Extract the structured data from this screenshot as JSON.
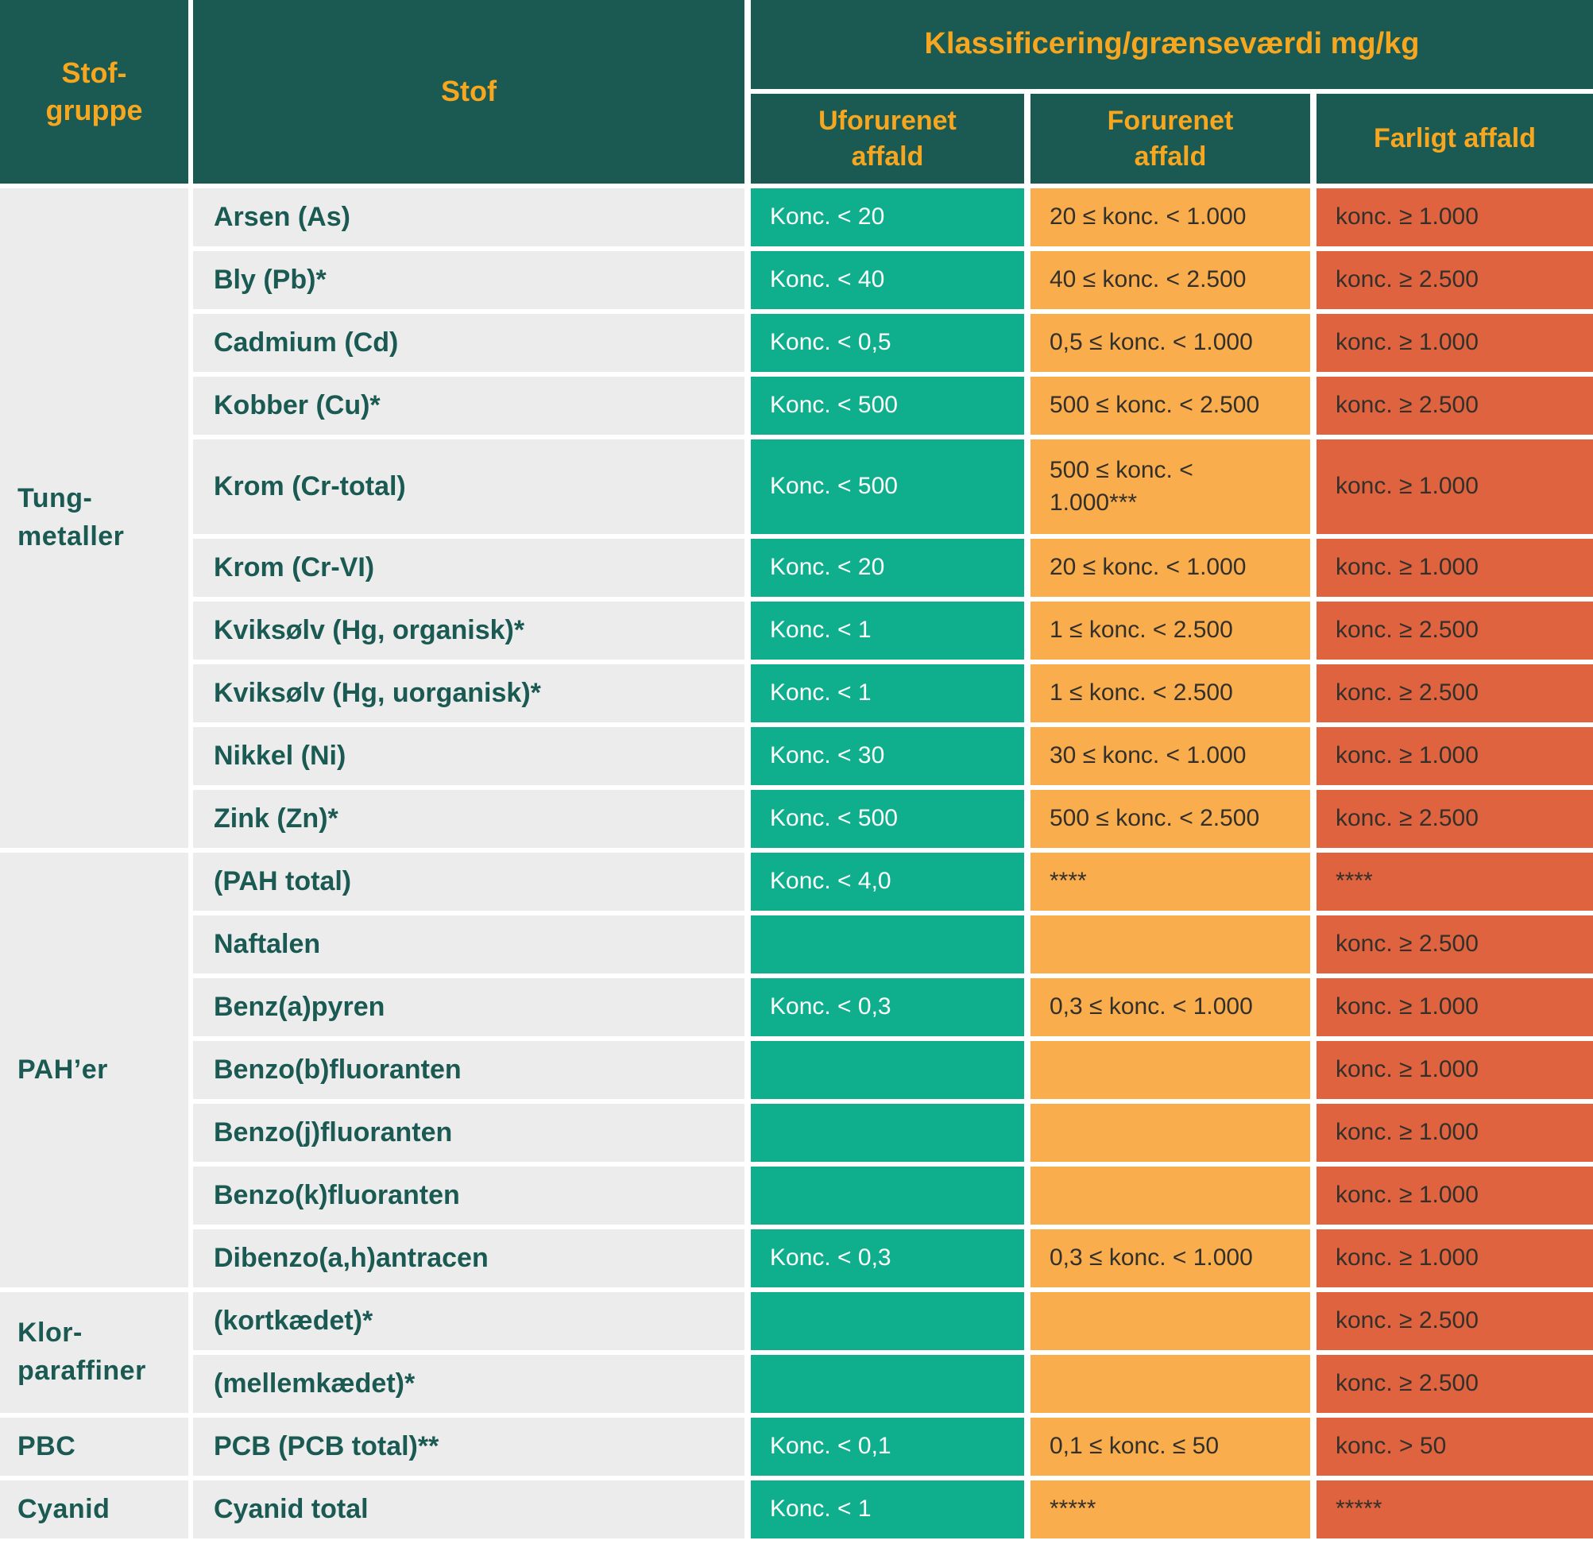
{
  "chart_data": {
    "type": "table",
    "title": "Klassificering/grænseværdi mg/kg",
    "col_headers": {
      "group": "Stof-gruppe",
      "substance": "Stof",
      "clean": "Uforurenet affald",
      "polluted": "Forurenet affald",
      "hazardous": "Farligt affald"
    },
    "groups": [
      {
        "label": "Tung-metaller",
        "rows": 10
      },
      {
        "label": "PAH’er",
        "rows": 7
      },
      {
        "label": "Klor-paraffiner",
        "rows": 2
      },
      {
        "label": "PBC",
        "rows": 1
      },
      {
        "label": "Cyanid",
        "rows": 1
      }
    ],
    "rows": [
      {
        "stof": "Arsen (As)",
        "clean": "Konc. < 20",
        "polluted": "20 ≤ konc. < 1.000",
        "hazardous": "konc. ≥ 1.000",
        "tall": false
      },
      {
        "stof": "Bly (Pb)*",
        "clean": "Konc. < 40",
        "polluted": "40 ≤ konc. < 2.500",
        "hazardous": "konc. ≥ 2.500",
        "tall": false
      },
      {
        "stof": "Cadmium (Cd)",
        "clean": "Konc. < 0,5",
        "polluted": "0,5 ≤ konc. < 1.000",
        "hazardous": "konc. ≥ 1.000",
        "tall": false
      },
      {
        "stof": "Kobber (Cu)*",
        "clean": "Konc. < 500",
        "polluted": "500 ≤ konc. < 2.500",
        "hazardous": "konc. ≥ 2.500",
        "tall": false
      },
      {
        "stof": "Krom (Cr-total)",
        "clean": "Konc. < 500",
        "polluted": "500 ≤ konc. < 1.000***",
        "hazardous": "konc. ≥ 1.000",
        "tall": true
      },
      {
        "stof": "Krom (Cr-VI)",
        "clean": "Konc. < 20",
        "polluted": "20 ≤ konc. < 1.000",
        "hazardous": "konc. ≥ 1.000",
        "tall": false
      },
      {
        "stof": "Kviksølv (Hg, organisk)*",
        "clean": "Konc. < 1",
        "polluted": "1 ≤ konc. < 2.500",
        "hazardous": "konc. ≥ 2.500",
        "tall": false
      },
      {
        "stof": "Kviksølv (Hg, uorganisk)*",
        "clean": "Konc. < 1",
        "polluted": "1 ≤ konc. < 2.500",
        "hazardous": "konc. ≥ 2.500",
        "tall": false
      },
      {
        "stof": "Nikkel (Ni)",
        "clean": "Konc. < 30",
        "polluted": "30 ≤ konc. < 1.000",
        "hazardous": "konc. ≥ 1.000",
        "tall": false
      },
      {
        "stof": "Zink (Zn)*",
        "clean": "Konc. < 500",
        "polluted": "500 ≤ konc. < 2.500",
        "hazardous": "konc. ≥ 2.500",
        "tall": false
      },
      {
        "stof": "(PAH total)",
        "clean": "Konc. < 4,0",
        "polluted": "****",
        "hazardous": "****",
        "tall": false
      },
      {
        "stof": "Naftalen",
        "clean": "",
        "polluted": "",
        "hazardous": "konc. ≥ 2.500",
        "tall": false
      },
      {
        "stof": "Benz(a)pyren",
        "clean": "Konc. < 0,3",
        "polluted": "0,3 ≤ konc. < 1.000",
        "hazardous": "konc. ≥ 1.000",
        "tall": false
      },
      {
        "stof": "Benzo(b)fluoranten",
        "clean": "",
        "polluted": "",
        "hazardous": "konc. ≥ 1.000",
        "tall": false
      },
      {
        "stof": "Benzo(j)fluoranten",
        "clean": "",
        "polluted": "",
        "hazardous": "konc. ≥ 1.000",
        "tall": false
      },
      {
        "stof": "Benzo(k)fluoranten",
        "clean": "",
        "polluted": "",
        "hazardous": "konc. ≥ 1.000",
        "tall": false
      },
      {
        "stof": "Dibenzo(a,h)antracen",
        "clean": "Konc. < 0,3",
        "polluted": "0,3 ≤ konc. < 1.000",
        "hazardous": "konc. ≥ 1.000",
        "tall": false
      },
      {
        "stof": "(kortkædet)*",
        "clean": "",
        "polluted": "",
        "hazardous": "konc. ≥ 2.500",
        "tall": false
      },
      {
        "stof": "(mellemkædet)*",
        "clean": "",
        "polluted": "",
        "hazardous": "konc. ≥ 2.500",
        "tall": false
      },
      {
        "stof": "PCB (PCB total)**",
        "clean": "Konc. < 0,1",
        "polluted": "0,1 ≤ konc. ≤ 50",
        "hazardous": "konc. > 50",
        "tall": false
      },
      {
        "stof": "Cyanid total",
        "clean": "Konc. < 1",
        "polluted": "*****",
        "hazardous": "*****",
        "tall": false
      }
    ]
  },
  "colors": {
    "header_bg": "#1A5A53",
    "header_text": "#F6A71F",
    "row_label_bg": "#ECECEC",
    "substance_text": "#1A5A52",
    "clean_bg": "#0FAF8E",
    "clean_text": "#FFFFFF",
    "polluted_bg": "#F9AD4C",
    "hazardous_bg": "#E0633F",
    "dark_value_text": "#33302B",
    "grid_gap": "#FFFFFF"
  }
}
